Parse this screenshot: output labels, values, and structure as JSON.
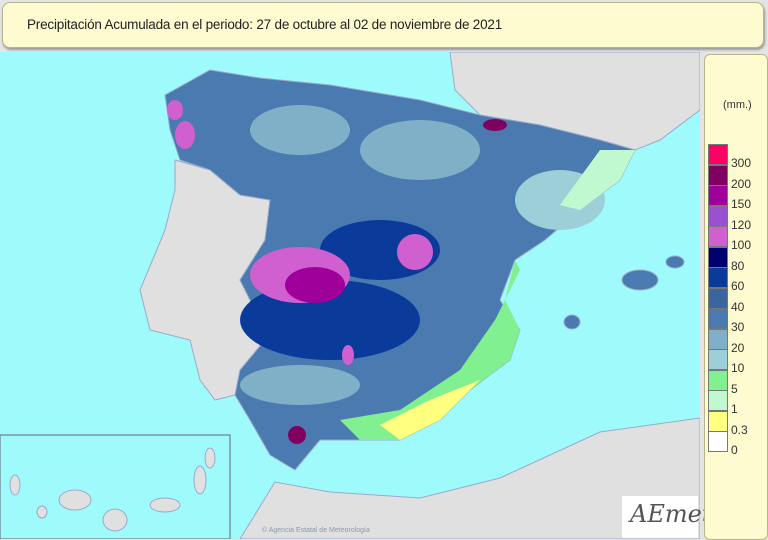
{
  "title": "Precipitación Acumulada en el periodo: 27  de octubre  al 02  de noviembre de  2021",
  "legend": {
    "unit": "(mm.)",
    "classes": [
      {
        "label": "300",
        "color": "#ff0066"
      },
      {
        "label": "200",
        "color": "#800060"
      },
      {
        "label": "150",
        "color": "#a0009a"
      },
      {
        "label": "120",
        "color": "#9a50d0"
      },
      {
        "label": "100",
        "color": "#d060d0"
      },
      {
        "label": "80",
        "color": "#000070"
      },
      {
        "label": "60",
        "color": "#0a3a9a"
      },
      {
        "label": "40",
        "color": "#3a66a0"
      },
      {
        "label": "30",
        "color": "#4a7ab0"
      },
      {
        "label": "20",
        "color": "#80b0c8"
      },
      {
        "label": "10",
        "color": "#9ccfd8"
      },
      {
        "label": "5",
        "color": "#80f090"
      },
      {
        "label": "1",
        "color": "#c0f8d0"
      },
      {
        "label": "0.3",
        "color": "#ffff80"
      },
      {
        "label": "0",
        "color": "#ffffff"
      }
    ]
  },
  "colors": {
    "sea": "#9ffbfb",
    "land_other": "#e0e0e0",
    "panel": "#fdfbcf"
  },
  "logo": "AEmet",
  "copyright": "© Agencia Estatal de Meteorología"
}
